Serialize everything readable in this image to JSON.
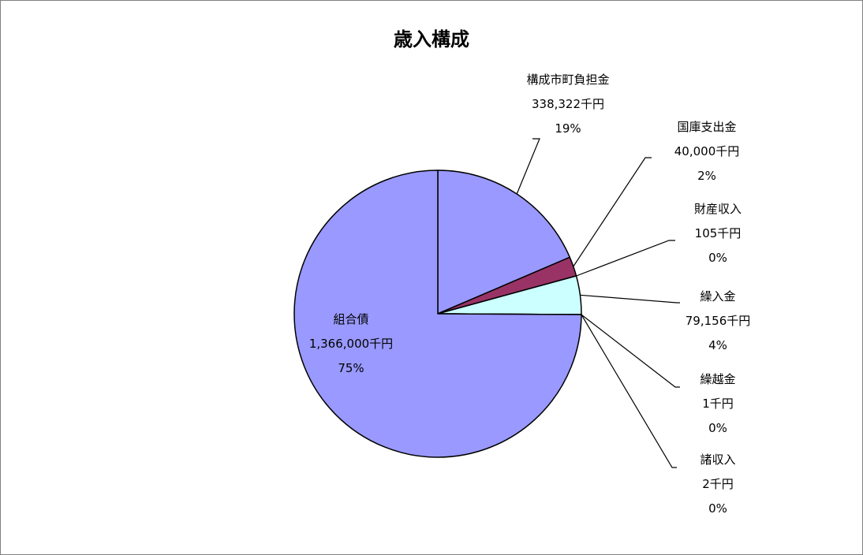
{
  "chart_data": {
    "type": "pie",
    "title": "歳入構成",
    "unit": "千円",
    "start_angle_deg": 0,
    "direction": "clockwise",
    "legend": "none",
    "slices": [
      {
        "name": "構成市町負担金",
        "value": 338322,
        "value_label": "338,322千円",
        "percent_label": "19%",
        "color": "#9999ff"
      },
      {
        "name": "国庫支出金",
        "value": 40000,
        "value_label": "40,000千円",
        "percent_label": "2%",
        "color": "#993366"
      },
      {
        "name": "財産収入",
        "value": 105,
        "value_label": "105千円",
        "percent_label": "0%",
        "color": "#ffffcc"
      },
      {
        "name": "繰入金",
        "value": 79156,
        "value_label": "79,156千円",
        "percent_label": "4%",
        "color": "#ccffff"
      },
      {
        "name": "繰越金",
        "value": 1,
        "value_label": "1千円",
        "percent_label": "0%",
        "color": "#660066"
      },
      {
        "name": "諸収入",
        "value": 2,
        "value_label": "2千円",
        "percent_label": "0%",
        "color": "#ff8080"
      },
      {
        "name": "組合債",
        "value": 1366000,
        "value_label": "1,366,000千円",
        "percent_label": "75%",
        "color": "#9999ff"
      }
    ]
  }
}
